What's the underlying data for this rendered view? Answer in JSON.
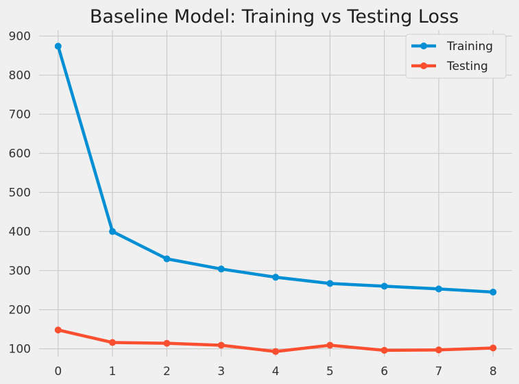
{
  "chart_data": {
    "type": "line",
    "title": "Baseline Model: Training vs Testing Loss",
    "xlabel": "",
    "ylabel": "",
    "x": [
      0,
      1,
      2,
      3,
      4,
      5,
      6,
      7,
      8
    ],
    "xlim": [
      -0.35,
      8.35
    ],
    "ylim": [
      80,
      915
    ],
    "xticks": [
      0,
      1,
      2,
      3,
      4,
      5,
      6,
      7,
      8
    ],
    "yticks": [
      100,
      200,
      300,
      400,
      500,
      600,
      700,
      800,
      900
    ],
    "grid": true,
    "legend_position": "top-right",
    "background_color": "#f0f0f0",
    "grid_color": "#cbcbcb",
    "series": [
      {
        "name": "Training",
        "color": "#008fd5",
        "values": [
          874,
          400,
          330,
          304,
          283,
          267,
          260,
          253,
          245
        ]
      },
      {
        "name": "Testing",
        "color": "#fc4f30",
        "values": [
          148,
          116,
          114,
          109,
          93,
          109,
          96,
          97,
          102
        ]
      }
    ]
  }
}
